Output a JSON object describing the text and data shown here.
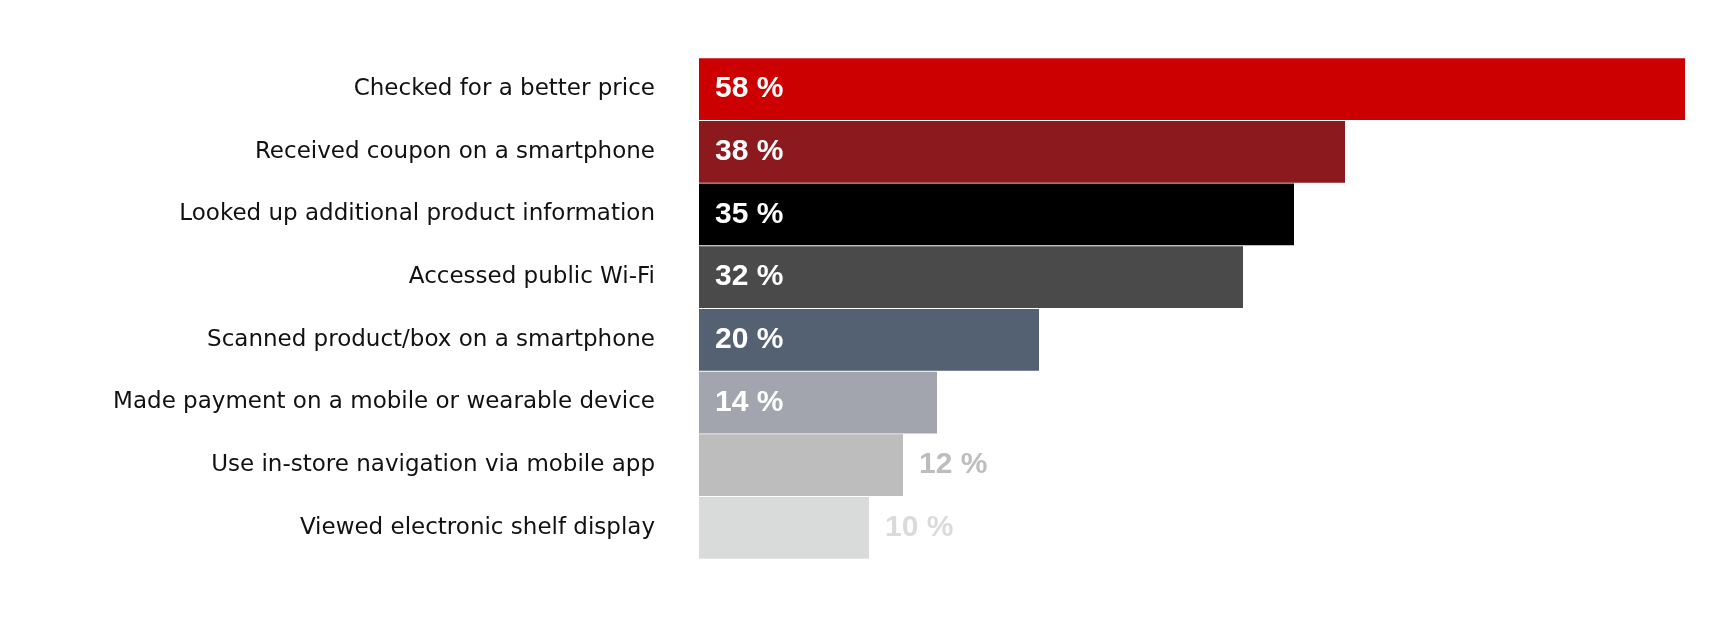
{
  "chart_data": {
    "type": "bar",
    "orientation": "horizontal",
    "categories": [
      "Checked for a better price",
      "Received coupon on a smartphone",
      "Looked up additional product information",
      "Accessed public Wi-Fi",
      "Scanned product/box on a smartphone",
      "Made payment on a mobile or wearable device",
      "Use in-store navigation via mobile app",
      "Viewed electronic shelf display"
    ],
    "values": [
      58,
      38,
      35,
      32,
      20,
      14,
      12,
      10
    ],
    "colors": [
      "#cc0000",
      "#8b191d",
      "#000000",
      "#4a4a4a",
      "#536172",
      "#a2a5ae",
      "#bdbdbd",
      "#d9dbda"
    ],
    "value_labels": [
      "58 %",
      "38 %",
      "35 %",
      "32 %",
      "20 %",
      "14 %",
      "12 %",
      "10 %"
    ],
    "grid": false,
    "legend": false
  }
}
